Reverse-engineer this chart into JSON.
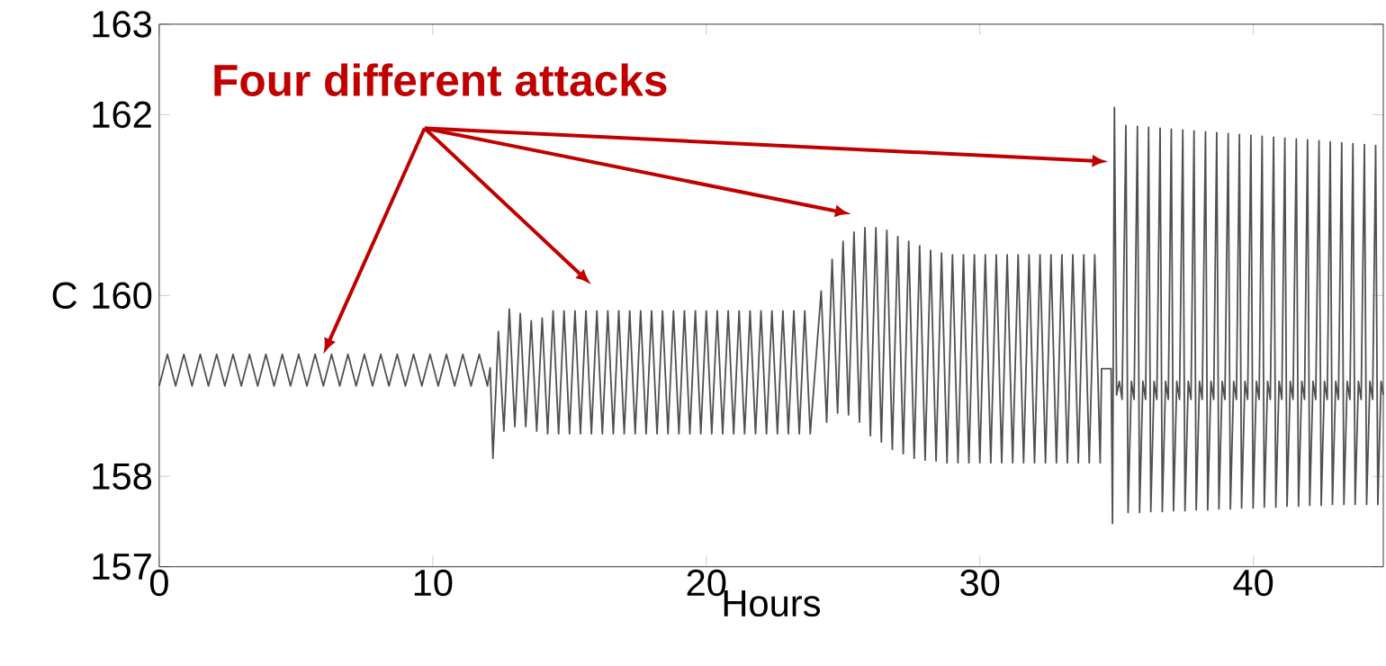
{
  "chart_data": {
    "type": "line",
    "xlabel": "Hours",
    "ylabel": "C",
    "annotations": [
      "Four different attacks"
    ],
    "xlim": [
      0,
      44.75
    ],
    "ylim": [
      157,
      163
    ],
    "xticks": [
      0,
      10,
      20,
      30,
      40
    ],
    "yticks": [
      157,
      158,
      160,
      162,
      163
    ],
    "series": [
      {
        "color": "#505050",
        "x": [
          0,
          0.3,
          0.6,
          0.9,
          1.2,
          1.5,
          1.8,
          2.1,
          2.4,
          2.7,
          3.0,
          3.3,
          3.6,
          3.9,
          4.2,
          4.5,
          4.8,
          5.1,
          5.4,
          5.7,
          6.0,
          6.3,
          6.6,
          6.9,
          7.2,
          7.5,
          7.8,
          8.1,
          8.4,
          8.7,
          9.0,
          9.3,
          9.6,
          9.9,
          10.2,
          10.5,
          10.8,
          11.1,
          11.4,
          11.7,
          12.0,
          12.1,
          12.2,
          12.4,
          12.6,
          12.8,
          13.0,
          13.2,
          13.4,
          13.6,
          13.8,
          14.0,
          14.2,
          14.4,
          14.6,
          14.8,
          15.0,
          15.2,
          15.4,
          15.6,
          15.8,
          16.0,
          16.2,
          16.4,
          16.6,
          16.8,
          17.0,
          17.2,
          17.4,
          17.6,
          17.8,
          18.0,
          18.2,
          18.4,
          18.6,
          18.8,
          19.0,
          19.2,
          19.4,
          19.6,
          19.8,
          20.0,
          20.2,
          20.4,
          20.6,
          20.8,
          21.0,
          21.2,
          21.4,
          21.6,
          21.8,
          22.0,
          22.2,
          22.4,
          22.6,
          22.8,
          23.0,
          23.2,
          23.4,
          23.6,
          23.8,
          24.2,
          24.4,
          24.6,
          24.8,
          25.0,
          25.2,
          25.4,
          25.6,
          25.8,
          26.0,
          26.2,
          26.4,
          26.6,
          26.8,
          27.0,
          27.2,
          27.4,
          27.6,
          27.8,
          28.0,
          28.2,
          28.4,
          28.6,
          28.8,
          29.0,
          29.2,
          29.4,
          29.6,
          29.8,
          30.0,
          30.2,
          30.4,
          30.6,
          30.8,
          31.0,
          31.2,
          31.4,
          31.6,
          31.8,
          32.0,
          32.2,
          32.4,
          32.6,
          32.8,
          33.0,
          33.2,
          33.4,
          33.6,
          33.8,
          34.0,
          34.2,
          34.4,
          34.45,
          34.8,
          34.85,
          34.92,
          35.0,
          35.1,
          35.2,
          35.34,
          35.42,
          35.54,
          35.64,
          35.76,
          35.84,
          35.96,
          36.06,
          36.17,
          36.25,
          36.37,
          36.47,
          36.59,
          36.67,
          36.79,
          36.89,
          37.0,
          37.08,
          37.2,
          37.3,
          37.42,
          37.5,
          37.62,
          37.72,
          37.83,
          37.91,
          38.03,
          38.13,
          38.25,
          38.33,
          38.45,
          38.55,
          38.66,
          38.74,
          38.86,
          38.96,
          39.08,
          39.16,
          39.28,
          39.38,
          39.49,
          39.57,
          39.69,
          39.79,
          39.91,
          39.99,
          40.11,
          40.21,
          40.32,
          40.4,
          40.52,
          40.62,
          40.74,
          40.82,
          40.94,
          41.04,
          41.15,
          41.23,
          41.35,
          41.45,
          41.57,
          41.65,
          41.77,
          41.87,
          41.98,
          42.06,
          42.18,
          42.28,
          42.4,
          42.48,
          42.6,
          42.7,
          42.81,
          42.89,
          43.01,
          43.11,
          43.23,
          43.31,
          43.43,
          43.53,
          43.64,
          43.72,
          43.84,
          43.94,
          44.06,
          44.14,
          44.26,
          44.36,
          44.47,
          44.55,
          44.67,
          44.75
        ],
        "values": [
          159.0,
          159.35,
          159.0,
          159.35,
          159.0,
          159.35,
          159.0,
          159.35,
          159.0,
          159.35,
          159.0,
          159.35,
          159.0,
          159.35,
          159.0,
          159.35,
          159.0,
          159.35,
          159.0,
          159.35,
          159.0,
          159.35,
          159.0,
          159.35,
          159.0,
          159.35,
          159.0,
          159.35,
          159.0,
          159.35,
          159.0,
          159.35,
          159.0,
          159.35,
          159.0,
          159.35,
          159.0,
          159.35,
          159.0,
          159.35,
          159.0,
          159.2,
          158.2,
          159.6,
          158.5,
          159.85,
          158.55,
          159.8,
          158.55,
          159.72,
          158.5,
          159.75,
          158.47,
          159.83,
          158.47,
          159.83,
          158.47,
          159.83,
          158.47,
          159.83,
          158.47,
          159.83,
          158.47,
          159.83,
          158.47,
          159.83,
          158.47,
          159.83,
          158.47,
          159.83,
          158.47,
          159.83,
          158.47,
          159.83,
          158.47,
          159.83,
          158.47,
          159.83,
          158.47,
          159.83,
          158.47,
          159.83,
          158.47,
          159.83,
          158.47,
          159.83,
          158.47,
          159.83,
          158.47,
          159.83,
          158.47,
          159.83,
          158.47,
          159.83,
          158.47,
          159.83,
          158.47,
          159.83,
          158.47,
          159.83,
          158.47,
          160.05,
          158.6,
          160.4,
          158.7,
          160.6,
          158.68,
          160.7,
          158.6,
          160.75,
          158.45,
          160.75,
          158.38,
          160.72,
          158.3,
          160.65,
          158.25,
          160.6,
          158.2,
          160.55,
          158.18,
          160.5,
          158.17,
          160.47,
          158.15,
          160.45,
          158.15,
          160.45,
          158.15,
          160.45,
          158.15,
          160.45,
          158.15,
          160.45,
          158.15,
          160.45,
          158.15,
          160.45,
          158.15,
          160.45,
          158.15,
          160.45,
          158.15,
          160.45,
          158.15,
          160.45,
          158.15,
          160.45,
          158.15,
          160.45,
          158.15,
          160.45,
          158.15,
          159.19,
          159.19,
          157.48,
          162.08,
          158.9,
          159.05,
          158.85,
          161.88,
          157.6,
          159.05,
          158.85,
          161.87,
          157.6,
          159.05,
          158.85,
          161.86,
          157.61,
          159.05,
          158.85,
          161.85,
          157.61,
          159.05,
          158.85,
          161.84,
          157.62,
          159.05,
          158.85,
          161.83,
          157.62,
          159.05,
          158.85,
          161.82,
          157.63,
          159.05,
          158.85,
          161.81,
          157.63,
          159.05,
          158.85,
          161.8,
          157.64,
          159.05,
          158.85,
          161.79,
          157.64,
          159.05,
          158.85,
          161.78,
          157.65,
          159.05,
          158.85,
          161.77,
          157.65,
          159.05,
          158.85,
          161.76,
          157.66,
          159.05,
          158.85,
          161.75,
          157.66,
          159.05,
          158.85,
          161.74,
          157.67,
          159.05,
          158.85,
          161.73,
          157.67,
          159.05,
          158.85,
          161.72,
          157.68,
          159.05,
          158.85,
          161.71,
          157.68,
          159.05,
          158.85,
          161.7,
          157.69,
          159.05,
          158.85,
          161.69,
          157.69,
          159.05,
          158.85,
          161.68,
          157.69,
          159.05,
          158.85,
          161.67,
          157.69,
          159.05,
          158.85,
          161.66,
          157.69,
          159.05,
          158.9
        ]
      }
    ]
  }
}
